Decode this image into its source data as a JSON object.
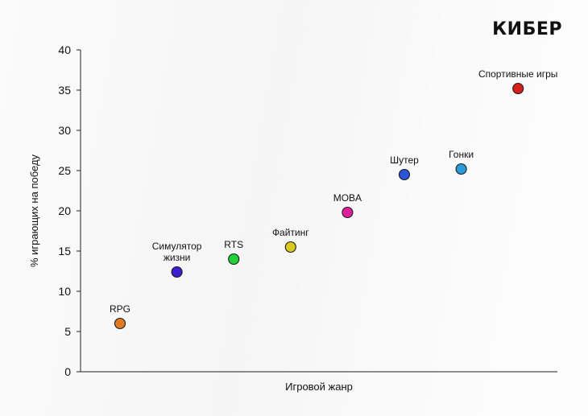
{
  "logo": "КИБЕР",
  "chart_data": {
    "type": "scatter",
    "xlabel": "Игровой жанр",
    "ylabel": "% играющих на победу",
    "ylim": [
      0,
      40
    ],
    "yticks": [
      0,
      5,
      10,
      15,
      20,
      25,
      30,
      35,
      40
    ],
    "grid": false,
    "points": [
      {
        "label": "RPG",
        "y": 6,
        "color": "#e07b24"
      },
      {
        "label": "Симулятор\nжизни",
        "y": 12.4,
        "color": "#3d1fd1"
      },
      {
        "label": "RTS",
        "y": 14,
        "color": "#22d13a"
      },
      {
        "label": "Файтинг",
        "y": 15.5,
        "color": "#d9c81e"
      },
      {
        "label": "MOBA",
        "y": 19.8,
        "color": "#df1f9a"
      },
      {
        "label": "Шутер",
        "y": 24.5,
        "color": "#2a55d8"
      },
      {
        "label": "Гонки",
        "y": 25.2,
        "color": "#2a9ad8"
      },
      {
        "label": "Спортивные игры",
        "y": 35.2,
        "color": "#d8201e"
      }
    ]
  }
}
